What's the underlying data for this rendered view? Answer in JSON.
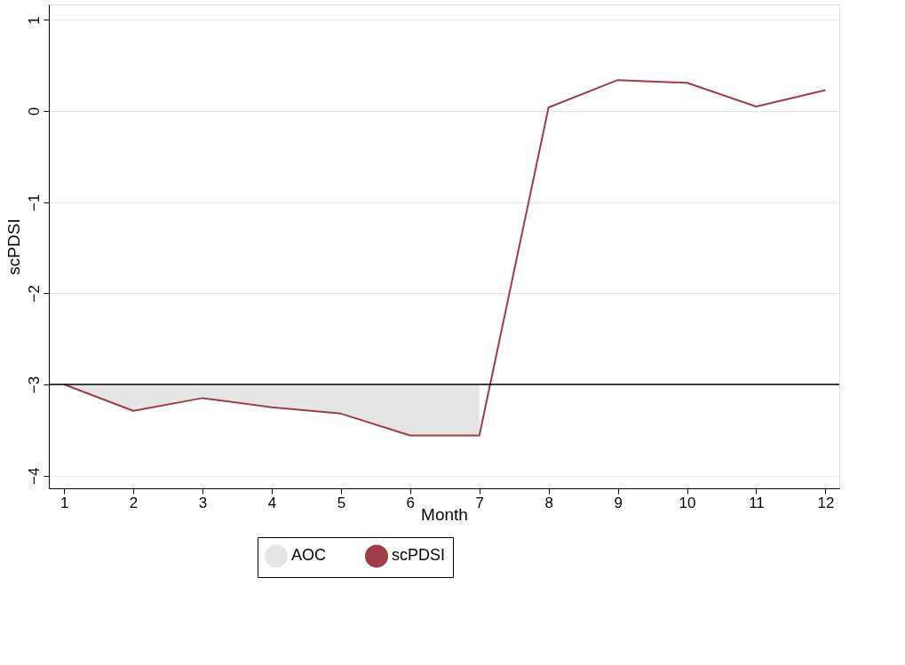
{
  "chart_data": {
    "type": "line",
    "xlabel": "Month",
    "ylabel": "scPDSI",
    "x": [
      1,
      2,
      3,
      4,
      5,
      6,
      7,
      8,
      9,
      10,
      11,
      12
    ],
    "series": [
      {
        "name": "AOC",
        "type": "area",
        "color": "#e5e5e5",
        "values": [
          -3.0,
          -3.29,
          -3.15,
          -3.25,
          -3.32,
          -3.56,
          -3.56,
          null,
          null,
          null,
          null,
          null
        ]
      },
      {
        "name": "scPDSI",
        "color": "#9e3c47",
        "values": [
          -3.0,
          -3.29,
          -3.15,
          -3.25,
          -3.32,
          -3.56,
          -3.56,
          0.04,
          0.34,
          0.31,
          0.05,
          0.23
        ]
      }
    ],
    "xlim": [
      0.78,
      12.2
    ],
    "xticks": [
      1,
      2,
      3,
      4,
      5,
      6,
      7,
      8,
      9,
      10,
      11,
      12
    ],
    "ylim": [
      -4.14,
      1.17
    ],
    "yticks": [
      -4,
      -3,
      -2,
      -1,
      0,
      1
    ],
    "ref_lines": [
      {
        "axis": "y",
        "value": -3,
        "color": "#000000"
      }
    ],
    "grid": "y",
    "legend": "bottom",
    "line_style": "solid",
    "marker": "none"
  }
}
